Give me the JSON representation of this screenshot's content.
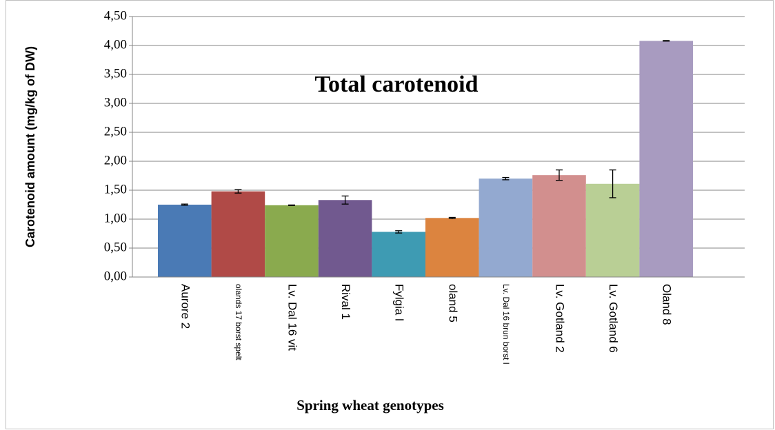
{
  "chart_data": {
    "type": "bar",
    "title": "Total carotenoid",
    "x_label": "Spring wheat genotypes",
    "y_label": "Carotenoid amount (mg/kg of DW)",
    "categories": [
      "Aurore 2",
      "olands 17 borst spelt",
      "Lv. Dal 16 vit",
      "Rival 1",
      "Fylgia l",
      "oland 5",
      "Lv. Dal 16 brun borst l",
      "Lv. Gotland 2",
      "Lv. Gotland 6",
      "Oland 8"
    ],
    "values": [
      1.25,
      1.48,
      1.24,
      1.33,
      0.78,
      1.02,
      1.7,
      1.76,
      1.61,
      4.08
    ],
    "errors": [
      0.01,
      0.03,
      0.005,
      0.07,
      0.02,
      0.01,
      0.02,
      0.09,
      0.24,
      0.005
    ],
    "colors": [
      "#4a7ab5",
      "#b04a47",
      "#8aaa4e",
      "#71598f",
      "#3e9bb3",
      "#dc843f",
      "#93a9d0",
      "#d28f8e",
      "#b9cf95",
      "#a89bc0"
    ],
    "ylim": [
      0,
      4.5
    ],
    "yticks": [
      {
        "value": 0,
        "label": "0,00"
      },
      {
        "value": 0.5,
        "label": "0,50"
      },
      {
        "value": 1,
        "label": "1,00"
      },
      {
        "value": 1.5,
        "label": "1,50"
      },
      {
        "value": 2,
        "label": "2,00"
      },
      {
        "value": 2.5,
        "label": "2,50"
      },
      {
        "value": 3,
        "label": "3,00"
      },
      {
        "value": 3.5,
        "label": "3,50"
      },
      {
        "value": 4,
        "label": "4,00"
      },
      {
        "value": 4.5,
        "label": "4,50"
      }
    ],
    "grid": true
  }
}
